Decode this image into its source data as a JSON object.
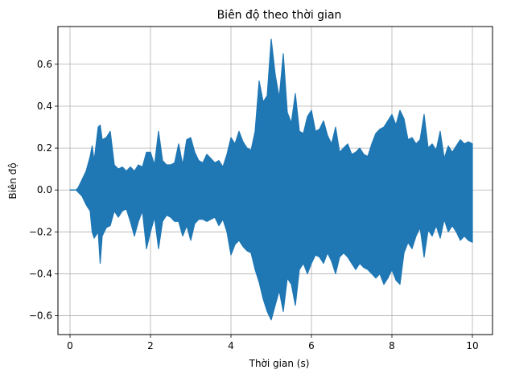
{
  "chart_data": {
    "type": "area",
    "title": "Biên độ theo thời gian",
    "xlabel": "Thời gian (s)",
    "ylabel": "Biên độ",
    "xlim": [
      -0.3,
      10.5
    ],
    "ylim": [
      -0.69,
      0.78
    ],
    "xticks": [
      0,
      2,
      4,
      6,
      8,
      10
    ],
    "xtick_labels": [
      "0",
      "2",
      "4",
      "6",
      "8",
      "10"
    ],
    "yticks": [
      -0.6,
      -0.4,
      -0.2,
      0.0,
      0.2,
      0.4,
      0.6
    ],
    "ytick_labels": [
      "−0.6",
      "−0.4",
      "−0.2",
      "0.0",
      "0.2",
      "0.4",
      "0.6"
    ],
    "grid": true,
    "series": [
      {
        "color": "#1f77b4",
        "x": [
          0.0,
          0.15,
          0.2,
          0.3,
          0.4,
          0.5,
          0.55,
          0.6,
          0.7,
          0.75,
          0.8,
          0.9,
          1.0,
          1.1,
          1.2,
          1.3,
          1.4,
          1.5,
          1.6,
          1.7,
          1.8,
          1.9,
          2.0,
          2.1,
          2.2,
          2.3,
          2.4,
          2.5,
          2.6,
          2.7,
          2.8,
          2.9,
          3.0,
          3.1,
          3.2,
          3.3,
          3.4,
          3.5,
          3.6,
          3.7,
          3.8,
          3.9,
          4.0,
          4.1,
          4.2,
          4.3,
          4.4,
          4.5,
          4.6,
          4.7,
          4.8,
          4.9,
          5.0,
          5.1,
          5.2,
          5.3,
          5.4,
          5.5,
          5.6,
          5.7,
          5.8,
          5.9,
          6.0,
          6.1,
          6.2,
          6.3,
          6.4,
          6.5,
          6.6,
          6.7,
          6.8,
          6.9,
          7.0,
          7.1,
          7.2,
          7.3,
          7.4,
          7.5,
          7.6,
          7.7,
          7.8,
          7.9,
          8.0,
          8.1,
          8.2,
          8.3,
          8.4,
          8.5,
          8.6,
          8.7,
          8.8,
          8.9,
          9.0,
          9.1,
          9.2,
          9.3,
          9.4,
          9.5,
          9.6,
          9.7,
          9.8,
          9.9,
          10.0
        ],
        "upper": [
          0.0,
          0.0,
          0.01,
          0.05,
          0.09,
          0.16,
          0.21,
          0.14,
          0.3,
          0.31,
          0.24,
          0.25,
          0.28,
          0.12,
          0.1,
          0.11,
          0.09,
          0.11,
          0.09,
          0.12,
          0.11,
          0.18,
          0.18,
          0.12,
          0.28,
          0.14,
          0.12,
          0.12,
          0.13,
          0.22,
          0.12,
          0.24,
          0.25,
          0.18,
          0.14,
          0.13,
          0.17,
          0.15,
          0.13,
          0.14,
          0.11,
          0.17,
          0.25,
          0.22,
          0.28,
          0.23,
          0.2,
          0.19,
          0.28,
          0.52,
          0.42,
          0.45,
          0.72,
          0.55,
          0.44,
          0.65,
          0.37,
          0.32,
          0.46,
          0.28,
          0.27,
          0.35,
          0.38,
          0.28,
          0.29,
          0.33,
          0.26,
          0.22,
          0.3,
          0.18,
          0.2,
          0.22,
          0.17,
          0.18,
          0.2,
          0.17,
          0.16,
          0.22,
          0.27,
          0.29,
          0.3,
          0.33,
          0.36,
          0.31,
          0.38,
          0.34,
          0.24,
          0.25,
          0.22,
          0.24,
          0.36,
          0.2,
          0.22,
          0.19,
          0.28,
          0.15,
          0.21,
          0.18,
          0.21,
          0.24,
          0.22,
          0.23,
          0.22
        ],
        "lower": [
          0.0,
          0.0,
          -0.01,
          -0.03,
          -0.07,
          -0.1,
          -0.2,
          -0.23,
          -0.2,
          -0.35,
          -0.22,
          -0.18,
          -0.17,
          -0.1,
          -0.13,
          -0.1,
          -0.09,
          -0.15,
          -0.22,
          -0.15,
          -0.1,
          -0.28,
          -0.2,
          -0.13,
          -0.28,
          -0.15,
          -0.12,
          -0.13,
          -0.15,
          -0.15,
          -0.22,
          -0.17,
          -0.24,
          -0.16,
          -0.14,
          -0.14,
          -0.15,
          -0.14,
          -0.13,
          -0.17,
          -0.14,
          -0.2,
          -0.31,
          -0.26,
          -0.24,
          -0.27,
          -0.29,
          -0.3,
          -0.38,
          -0.44,
          -0.52,
          -0.58,
          -0.62,
          -0.55,
          -0.48,
          -0.58,
          -0.42,
          -0.45,
          -0.55,
          -0.38,
          -0.35,
          -0.4,
          -0.35,
          -0.31,
          -0.32,
          -0.35,
          -0.3,
          -0.34,
          -0.4,
          -0.32,
          -0.3,
          -0.32,
          -0.35,
          -0.38,
          -0.35,
          -0.37,
          -0.38,
          -0.4,
          -0.42,
          -0.4,
          -0.45,
          -0.42,
          -0.38,
          -0.43,
          -0.45,
          -0.3,
          -0.25,
          -0.28,
          -0.22,
          -0.18,
          -0.32,
          -0.19,
          -0.22,
          -0.17,
          -0.23,
          -0.14,
          -0.2,
          -0.17,
          -0.2,
          -0.24,
          -0.22,
          -0.24,
          -0.25
        ]
      }
    ]
  }
}
